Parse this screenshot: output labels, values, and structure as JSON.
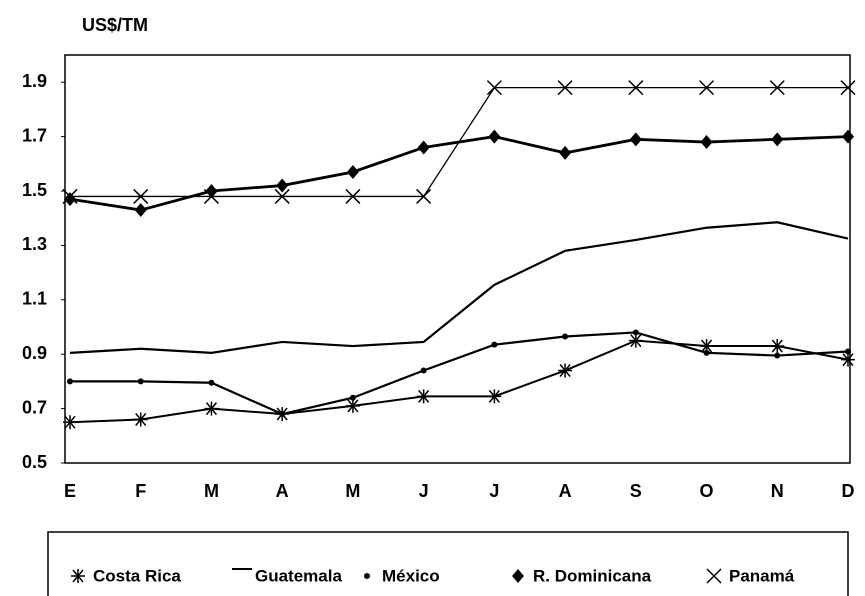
{
  "chart_data": {
    "type": "line",
    "y_axis_label": "US$/TM",
    "categories": [
      "E",
      "F",
      "M",
      "A",
      "M",
      "J",
      "J",
      "A",
      "S",
      "O",
      "N",
      "D"
    ],
    "ylim": [
      0.5,
      2.0
    ],
    "yticks": [
      0.5,
      0.7,
      0.9,
      1.1,
      1.3,
      1.5,
      1.7,
      1.9
    ],
    "legend": "bottom",
    "series": [
      {
        "name": "Costa Rica",
        "color": "#000000",
        "marker": "asterisk",
        "values": [
          0.65,
          0.66,
          0.7,
          0.68,
          0.71,
          0.745,
          0.745,
          0.84,
          0.95,
          0.93,
          0.93,
          0.88
        ]
      },
      {
        "name": "Guatemala",
        "color": "#000000",
        "marker": "none",
        "values": [
          0.905,
          0.92,
          0.905,
          0.945,
          0.93,
          0.945,
          1.155,
          1.28,
          1.32,
          1.365,
          1.385,
          1.325
        ]
      },
      {
        "name": "México",
        "color": "#000000",
        "marker": "dot",
        "values": [
          0.8,
          0.8,
          0.795,
          0.68,
          0.74,
          0.84,
          0.935,
          0.965,
          0.98,
          0.905,
          0.895,
          0.91
        ]
      },
      {
        "name": "R. Dominicana",
        "color": "#000000",
        "marker": "diamond",
        "values": [
          1.47,
          1.43,
          1.5,
          1.52,
          1.57,
          1.66,
          1.7,
          1.64,
          1.69,
          1.68,
          1.69,
          1.7
        ]
      },
      {
        "name": "Panamá",
        "color": "#000000",
        "marker": "x",
        "values": [
          1.48,
          1.48,
          1.48,
          1.48,
          1.48,
          1.48,
          1.88,
          1.88,
          1.88,
          1.88,
          1.88,
          1.88
        ]
      }
    ]
  }
}
